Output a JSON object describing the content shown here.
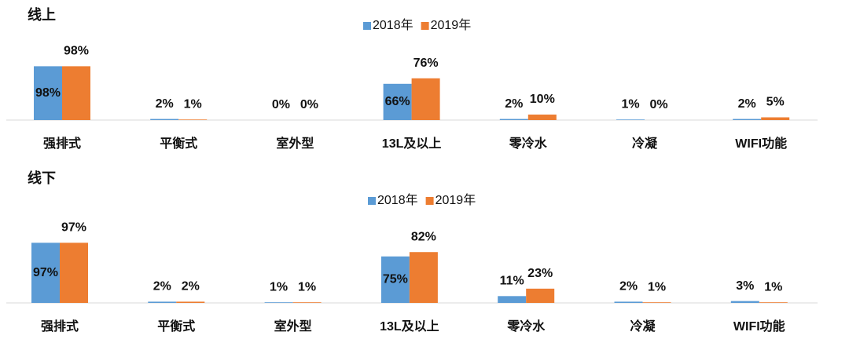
{
  "chart_data": [
    {
      "type": "bar",
      "title": "线上",
      "categories": [
        "强排式",
        "平衡式",
        "室外型",
        "13L及以上",
        "零冷水",
        "冷凝",
        "WIFI功能"
      ],
      "series": [
        {
          "name": "2018年",
          "color": "#5b9bd5",
          "values": [
            98,
            2,
            0,
            66,
            2,
            1,
            2
          ],
          "value_labels": [
            "98%",
            "2%",
            "0%",
            "66%",
            "2%",
            "1%",
            "2%"
          ]
        },
        {
          "name": "2019年",
          "color": "#ed7d31",
          "values": [
            98,
            1,
            0,
            76,
            10,
            0,
            5
          ],
          "value_labels": [
            "98%",
            "1%",
            "0%",
            "76%",
            "10%",
            "0%",
            "5%"
          ]
        }
      ],
      "ylim": [
        0,
        100
      ]
    },
    {
      "type": "bar",
      "title": "线下",
      "categories": [
        "强排式",
        "平衡式",
        "室外型",
        "13L及以上",
        "零冷水",
        "冷凝",
        "WIFI功能"
      ],
      "series": [
        {
          "name": "2018年",
          "color": "#5b9bd5",
          "values": [
            97,
            2,
            1,
            75,
            11,
            2,
            3
          ],
          "value_labels": [
            "97%",
            "2%",
            "1%",
            "75%",
            "11%",
            "2%",
            "3%"
          ]
        },
        {
          "name": "2019年",
          "color": "#ed7d31",
          "values": [
            97,
            2,
            1,
            82,
            23,
            1,
            1
          ],
          "value_labels": [
            "97%",
            "2%",
            "1%",
            "82%",
            "23%",
            "1%",
            "1%"
          ]
        }
      ],
      "ylim": [
        0,
        100
      ]
    }
  ]
}
